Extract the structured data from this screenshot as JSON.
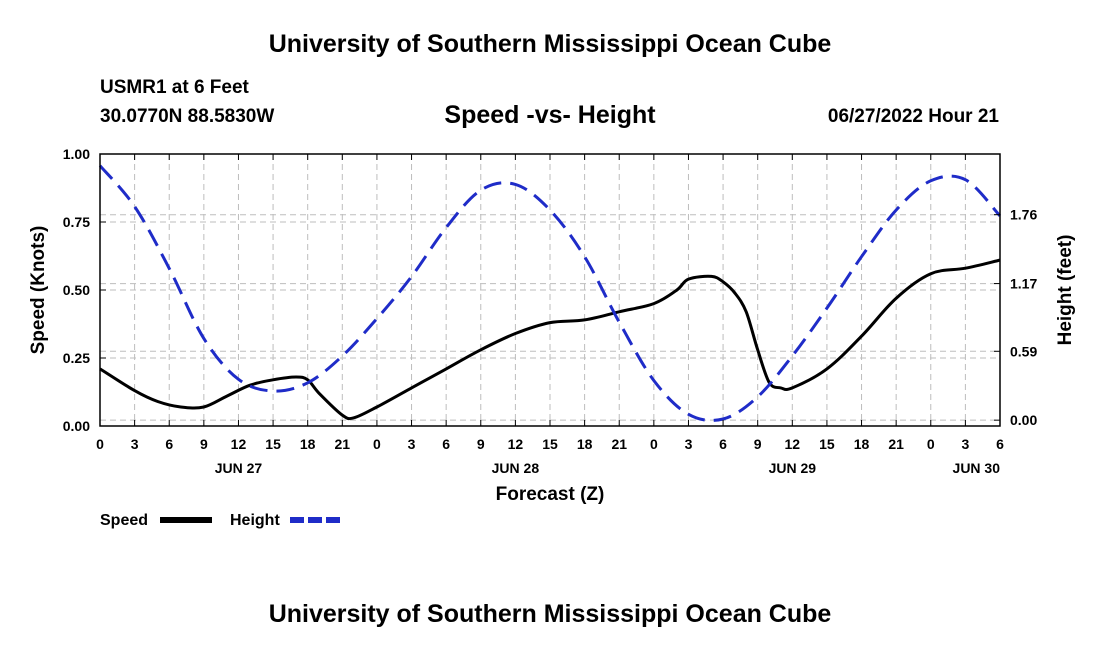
{
  "header": {
    "title": "University of Southern Mississippi Ocean Cube",
    "station": "USMR1 at 6 Feet",
    "coords": "30.0770N  88.5830W",
    "subtitle": "Speed -vs- Height",
    "datetime": "06/27/2022 Hour 21"
  },
  "footer": {
    "title": "University of Southern Mississippi Ocean Cube"
  },
  "chart_data": {
    "type": "line",
    "title": "Speed -vs- Height",
    "xlabel": "Forecast (Z)",
    "ylabel": "Speed (Knots)",
    "y2label": "Height (feet)",
    "ylim": [
      0,
      1.0
    ],
    "y2lim": [
      -0.05,
      2.28
    ],
    "yticks": [
      "0.00",
      "0.25",
      "0.50",
      "0.75",
      "1.00"
    ],
    "y2ticks": [
      "0.00",
      "0.59",
      "1.17",
      "1.76"
    ],
    "xlim": [
      0,
      78
    ],
    "xtick_labels": [
      "0",
      "3",
      "6",
      "9",
      "12",
      "15",
      "18",
      "21",
      "0",
      "3",
      "6",
      "9",
      "12",
      "15",
      "18",
      "21",
      "0",
      "3",
      "6",
      "9",
      "12",
      "15",
      "18",
      "21",
      "0",
      "3",
      "6"
    ],
    "day_labels": [
      {
        "label": "JUN 27",
        "hour": 12
      },
      {
        "label": "JUN 28",
        "hour": 36
      },
      {
        "label": "JUN 29",
        "hour": 60
      },
      {
        "label": "JUN 30",
        "hour": 78
      }
    ],
    "series": [
      {
        "name": "Speed",
        "axis": "left",
        "color": "#000000",
        "style": "solid",
        "x": [
          0,
          3,
          5,
          7,
          9,
          11,
          13,
          15,
          17,
          18,
          19,
          21,
          22,
          24,
          27,
          30,
          33,
          36,
          39,
          42,
          45,
          48,
          50,
          51,
          53,
          54,
          55,
          56,
          57,
          58,
          59,
          60,
          63,
          66,
          69,
          72,
          75,
          78
        ],
        "values": [
          0.21,
          0.13,
          0.09,
          0.07,
          0.07,
          0.11,
          0.15,
          0.17,
          0.18,
          0.17,
          0.12,
          0.04,
          0.03,
          0.07,
          0.14,
          0.21,
          0.28,
          0.34,
          0.38,
          0.39,
          0.42,
          0.45,
          0.5,
          0.54,
          0.55,
          0.53,
          0.49,
          0.42,
          0.28,
          0.16,
          0.14,
          0.14,
          0.21,
          0.33,
          0.47,
          0.56,
          0.58,
          0.61
        ]
      },
      {
        "name": "Height",
        "axis": "right",
        "color": "#1f2cc8",
        "style": "dashed",
        "x": [
          0,
          3,
          6,
          9,
          12,
          15,
          18,
          21,
          24,
          27,
          30,
          33,
          36,
          39,
          42,
          45,
          48,
          51,
          54,
          57,
          60,
          63,
          66,
          69,
          72,
          75,
          78
        ],
        "values": [
          2.18,
          1.83,
          1.3,
          0.7,
          0.35,
          0.25,
          0.32,
          0.55,
          0.87,
          1.23,
          1.65,
          1.97,
          2.02,
          1.8,
          1.4,
          0.84,
          0.34,
          0.05,
          0.01,
          0.2,
          0.55,
          0.96,
          1.4,
          1.8,
          2.05,
          2.06,
          1.75
        ]
      }
    ],
    "legend": [
      {
        "label": "Speed",
        "color": "#000000",
        "style": "solid"
      },
      {
        "label": "Height",
        "color": "#1f2cc8",
        "style": "dashed"
      }
    ],
    "grid": true,
    "legend_position": "bottom-left"
  }
}
